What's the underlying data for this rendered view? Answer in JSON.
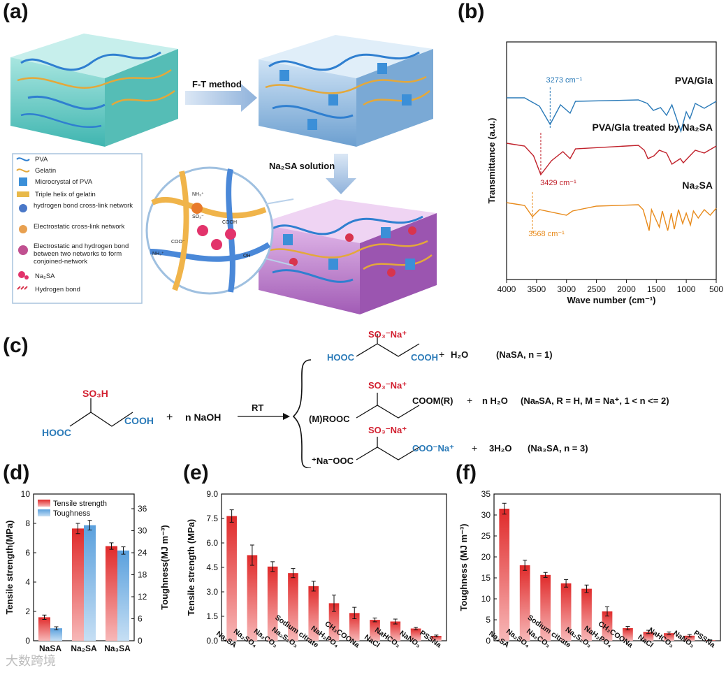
{
  "panels": {
    "a": "(a)",
    "b": "(b)",
    "c": "(c)",
    "d": "(d)",
    "e": "(e)",
    "f": "(f)"
  },
  "a": {
    "arrow1": "F-T method",
    "arrow2": "Na₂SA solution",
    "legend": [
      "PVA",
      "Gelatin",
      "Microcrystal of PVA",
      "Triple helix of gelatin",
      "hydrogen bond cross-link network",
      "Electrostatic cross-link network",
      "Electrostatic and hydrogen bond between two networks to form conjoined-network",
      "Na₂SA",
      "Hydrogen bond"
    ],
    "zoom": {
      "nh": "NH₃⁺",
      "so3": "SO₃⁻",
      "coo1": "COO⁻",
      "nh2": "NH₃⁺",
      "cooh": "COOH",
      "oh": "OH"
    }
  },
  "chart_data": [
    {
      "type": "line",
      "panel": "b",
      "xlabel": "Wave number (cm⁻¹)",
      "ylabel": "Transmittance (a.u.)",
      "xlim": [
        4000,
        500
      ],
      "xticks": [
        "4000",
        "3500",
        "3000",
        "2500",
        "2000",
        "1500",
        "1000",
        "500"
      ],
      "series": [
        {
          "name": "PVA/Gla",
          "color": "#2a7ab8",
          "peak_label": "3273 cm⁻¹",
          "peak": 3273
        },
        {
          "name": "PVA/Gla treated by Na₂SA",
          "color": "#c0202a",
          "peak_label": "3429 cm⁻¹",
          "peak": 3429
        },
        {
          "name": "Na₂SA",
          "color": "#e88a1a",
          "peak_label": "3568 cm⁻¹",
          "peak": 3568
        }
      ]
    },
    {
      "type": "bar",
      "panel": "d",
      "categories": [
        "NaSA",
        "Na₂SA",
        "Na₃SA"
      ],
      "series": [
        {
          "name": "Tensile strength",
          "values": [
            1.6,
            7.65,
            6.45
          ],
          "errors": [
            0.15,
            0.35,
            0.22
          ],
          "axis": "left"
        },
        {
          "name": "Toughness",
          "values": [
            3.4,
            31.5,
            24.6
          ],
          "errors": [
            0.4,
            1.3,
            1.0
          ],
          "axis": "right"
        }
      ],
      "ylabel": "Tensile strength(MPa)",
      "ylabel2": "Toughness(MJ m⁻³)",
      "ylim": [
        0,
        10
      ],
      "yticks": [
        "0",
        "2",
        "4",
        "6",
        "8",
        "10"
      ],
      "ylim2": [
        0,
        40
      ],
      "yticks2": [
        "0",
        "6",
        "12",
        "18",
        "24",
        "30",
        "36"
      ]
    },
    {
      "type": "bar",
      "panel": "e",
      "categories": [
        "Na₂SA",
        "Na₂SO₄",
        "Na₂CO₃",
        "Na₂S₂O₃",
        "Sodium citrate",
        "NaH₂PO₄",
        "CH₃COONa",
        "NaCl",
        "NaHCO₃",
        "NaNO₃",
        "PSSNa"
      ],
      "values": [
        7.65,
        5.25,
        4.55,
        4.15,
        3.35,
        2.3,
        1.7,
        1.28,
        1.18,
        0.75,
        0.3
      ],
      "errors": [
        0.38,
        0.62,
        0.3,
        0.28,
        0.3,
        0.5,
        0.35,
        0.12,
        0.15,
        0.08,
        0.05
      ],
      "ylabel": "Tensile strength (MPa)",
      "ylim": [
        0,
        9
      ],
      "yticks": [
        "0.0",
        "1.5",
        "3.0",
        "4.5",
        "6.0",
        "7.5",
        "9.0"
      ]
    },
    {
      "type": "bar",
      "panel": "f",
      "categories": [
        "Na₂SA",
        "Na₂SO₄",
        "Na₂CO₃",
        "Sodium citrate",
        "Na₂S₂O₃",
        "NaH₂PO₄",
        "CH₃COONa",
        "NaCl",
        "NaHCO₃",
        "NaNO₃",
        "PSSNa"
      ],
      "values": [
        31.5,
        18.0,
        15.7,
        13.7,
        12.4,
        7.0,
        3.0,
        2.1,
        1.8,
        1.2,
        0.15
      ],
      "errors": [
        1.3,
        1.2,
        0.6,
        0.9,
        0.9,
        1.1,
        0.4,
        0.4,
        0.3,
        0.3,
        0.05
      ],
      "ylabel": "Toughness (MJ m⁻³)",
      "ylim": [
        0,
        35
      ],
      "yticks": [
        "0",
        "5",
        "10",
        "15",
        "20",
        "25",
        "30",
        "35"
      ]
    }
  ],
  "c": {
    "reactant": {
      "so3h": "SO₃H",
      "hooc": "HOOC",
      "cooh": "COOH"
    },
    "plus": "+",
    "naoh": "n NaOH",
    "rt": "RT",
    "p1": {
      "so3": "SO₃⁻Na⁺",
      "hooc": "HOOC",
      "cooh": "COOH",
      "water": "H₂O",
      "note": "(NaSA, n = 1)"
    },
    "p2": {
      "so3": "SO₃⁻Na⁺",
      "left": "(M)ROOC",
      "right": "COOM(R)",
      "water": "n H₂O",
      "note": "(NaₙSA, R = H, M = Na⁺, 1 < n <= 2)"
    },
    "p3": {
      "so3": "SO₃⁻Na⁺",
      "left": "⁺Na⁻OOC",
      "right": "COO⁻Na⁺",
      "water": "3H₂O",
      "note": "(Na₃SA, n = 3)"
    }
  },
  "watermark": "大数跨境"
}
